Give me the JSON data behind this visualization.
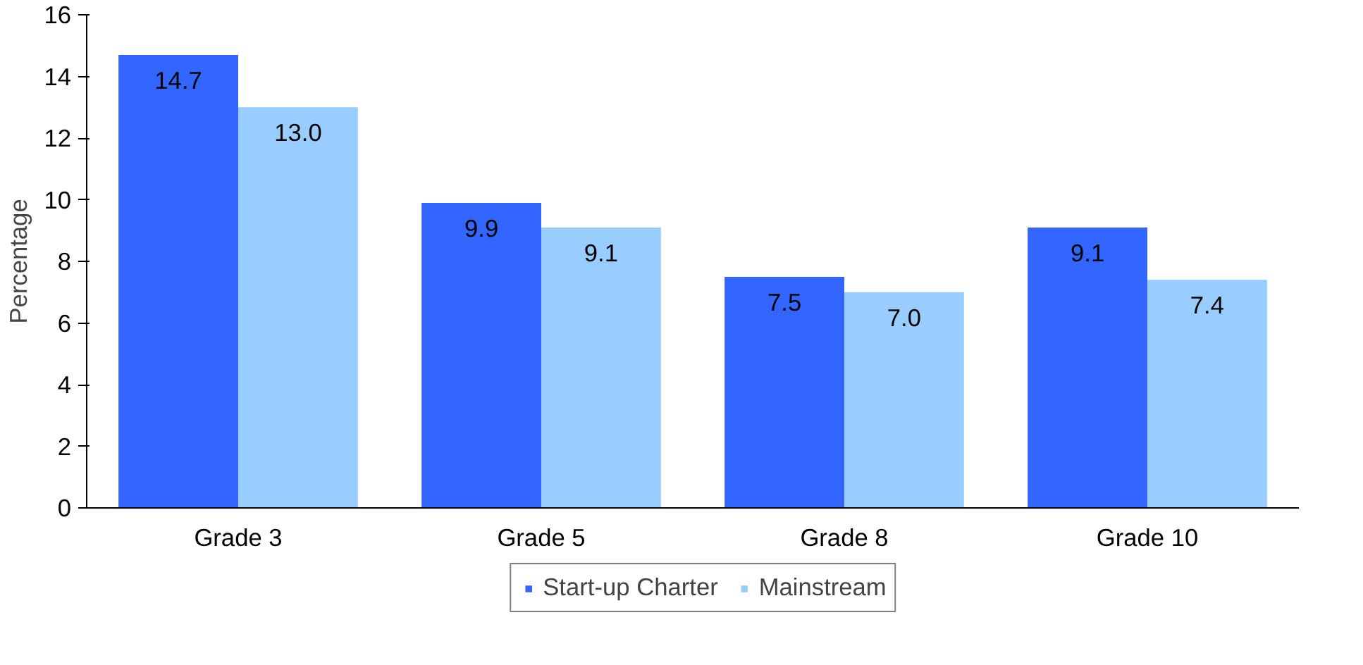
{
  "chart_data": {
    "type": "bar",
    "ylabel": "Percentage",
    "categories": [
      "Grade 3",
      "Grade 5",
      "Grade 8",
      "Grade 10"
    ],
    "ylim": [
      0,
      16
    ],
    "yticks": [
      0,
      2,
      4,
      6,
      8,
      10,
      12,
      14,
      16
    ],
    "grid": false,
    "legend": "bottom",
    "series": [
      {
        "name": "Start-up Charter",
        "color": "#3366ff",
        "values": [
          14.7,
          9.9,
          7.5,
          9.1
        ],
        "value_labels": [
          "14.7",
          "9.9",
          "7.5",
          "9.1"
        ]
      },
      {
        "name": "Mainstream",
        "color": "#99ccff",
        "values": [
          13.0,
          9.1,
          7.0,
          7.4
        ],
        "value_labels": [
          "13.0",
          "9.1",
          "7.0",
          "7.4"
        ]
      }
    ]
  }
}
